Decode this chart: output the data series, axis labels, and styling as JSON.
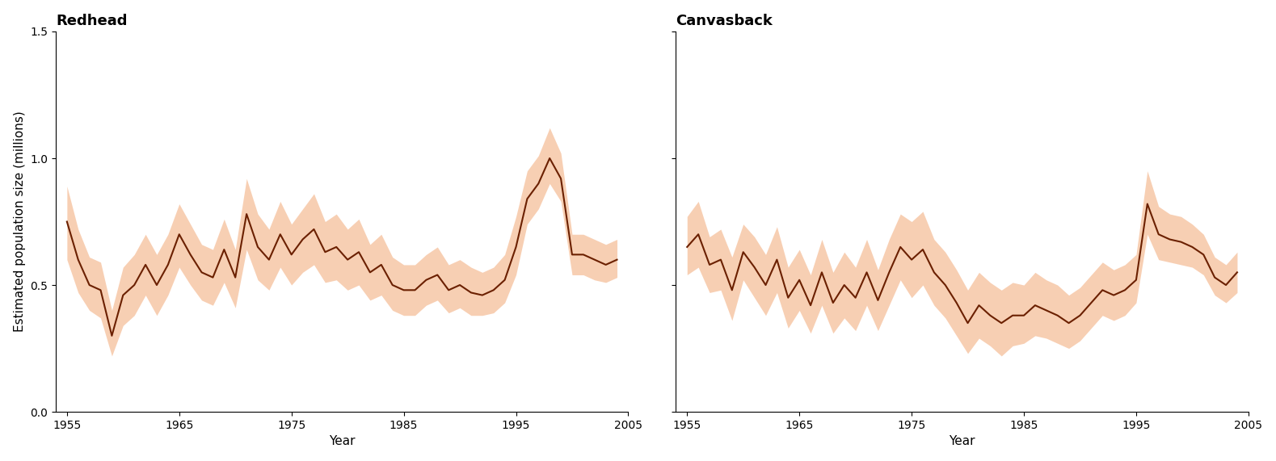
{
  "redhead": {
    "title": "Redhead",
    "years": [
      1955,
      1956,
      1957,
      1958,
      1959,
      1960,
      1961,
      1962,
      1963,
      1964,
      1965,
      1966,
      1967,
      1968,
      1969,
      1970,
      1971,
      1972,
      1973,
      1974,
      1975,
      1976,
      1977,
      1978,
      1979,
      1980,
      1981,
      1982,
      1983,
      1984,
      1985,
      1986,
      1987,
      1988,
      1989,
      1990,
      1991,
      1992,
      1993,
      1994,
      1995,
      1996,
      1997,
      1998,
      1999,
      2000,
      2001,
      2002,
      2003,
      2004
    ],
    "mean": [
      0.75,
      0.6,
      0.5,
      0.48,
      0.3,
      0.46,
      0.5,
      0.58,
      0.5,
      0.58,
      0.7,
      0.62,
      0.55,
      0.53,
      0.64,
      0.53,
      0.78,
      0.65,
      0.6,
      0.7,
      0.62,
      0.68,
      0.72,
      0.63,
      0.65,
      0.6,
      0.63,
      0.55,
      0.58,
      0.5,
      0.48,
      0.48,
      0.52,
      0.54,
      0.48,
      0.5,
      0.47,
      0.46,
      0.48,
      0.52,
      0.65,
      0.84,
      0.9,
      1.0,
      0.92,
      0.62,
      0.62,
      0.6,
      0.58,
      0.6
    ],
    "lower": [
      0.6,
      0.47,
      0.4,
      0.37,
      0.22,
      0.34,
      0.38,
      0.46,
      0.38,
      0.46,
      0.57,
      0.5,
      0.44,
      0.42,
      0.51,
      0.41,
      0.64,
      0.52,
      0.48,
      0.57,
      0.5,
      0.55,
      0.58,
      0.51,
      0.52,
      0.48,
      0.5,
      0.44,
      0.46,
      0.4,
      0.38,
      0.38,
      0.42,
      0.44,
      0.39,
      0.41,
      0.38,
      0.38,
      0.39,
      0.43,
      0.54,
      0.74,
      0.8,
      0.9,
      0.83,
      0.54,
      0.54,
      0.52,
      0.51,
      0.53
    ],
    "upper": [
      0.89,
      0.72,
      0.61,
      0.59,
      0.4,
      0.57,
      0.62,
      0.7,
      0.62,
      0.7,
      0.82,
      0.74,
      0.66,
      0.64,
      0.76,
      0.64,
      0.92,
      0.78,
      0.72,
      0.83,
      0.74,
      0.8,
      0.86,
      0.75,
      0.78,
      0.72,
      0.76,
      0.66,
      0.7,
      0.61,
      0.58,
      0.58,
      0.62,
      0.65,
      0.58,
      0.6,
      0.57,
      0.55,
      0.57,
      0.62,
      0.77,
      0.95,
      1.01,
      1.12,
      1.02,
      0.7,
      0.7,
      0.68,
      0.66,
      0.68
    ]
  },
  "canvasback": {
    "title": "Canvasback",
    "years": [
      1955,
      1956,
      1957,
      1958,
      1959,
      1960,
      1961,
      1962,
      1963,
      1964,
      1965,
      1966,
      1967,
      1968,
      1969,
      1970,
      1971,
      1972,
      1973,
      1974,
      1975,
      1976,
      1977,
      1978,
      1979,
      1980,
      1981,
      1982,
      1983,
      1984,
      1985,
      1986,
      1987,
      1988,
      1989,
      1990,
      1991,
      1992,
      1993,
      1994,
      1995,
      1996,
      1997,
      1998,
      1999,
      2000,
      2001,
      2002,
      2003,
      2004
    ],
    "mean": [
      0.65,
      0.7,
      0.58,
      0.6,
      0.48,
      0.63,
      0.57,
      0.5,
      0.6,
      0.45,
      0.52,
      0.42,
      0.55,
      0.43,
      0.5,
      0.45,
      0.55,
      0.44,
      0.55,
      0.65,
      0.6,
      0.64,
      0.55,
      0.5,
      0.43,
      0.35,
      0.42,
      0.38,
      0.35,
      0.38,
      0.38,
      0.42,
      0.4,
      0.38,
      0.35,
      0.38,
      0.43,
      0.48,
      0.46,
      0.48,
      0.52,
      0.82,
      0.7,
      0.68,
      0.67,
      0.65,
      0.62,
      0.53,
      0.5,
      0.55
    ],
    "lower": [
      0.54,
      0.57,
      0.47,
      0.48,
      0.36,
      0.52,
      0.45,
      0.38,
      0.47,
      0.33,
      0.4,
      0.31,
      0.42,
      0.31,
      0.37,
      0.32,
      0.42,
      0.32,
      0.42,
      0.52,
      0.45,
      0.5,
      0.42,
      0.37,
      0.3,
      0.23,
      0.29,
      0.26,
      0.22,
      0.26,
      0.27,
      0.3,
      0.29,
      0.27,
      0.25,
      0.28,
      0.33,
      0.38,
      0.36,
      0.38,
      0.43,
      0.7,
      0.6,
      0.59,
      0.58,
      0.57,
      0.54,
      0.46,
      0.43,
      0.47
    ],
    "upper": [
      0.77,
      0.83,
      0.69,
      0.72,
      0.61,
      0.74,
      0.69,
      0.62,
      0.73,
      0.57,
      0.64,
      0.54,
      0.68,
      0.55,
      0.63,
      0.57,
      0.68,
      0.56,
      0.68,
      0.78,
      0.75,
      0.79,
      0.68,
      0.63,
      0.56,
      0.48,
      0.55,
      0.51,
      0.48,
      0.51,
      0.5,
      0.55,
      0.52,
      0.5,
      0.46,
      0.49,
      0.54,
      0.59,
      0.56,
      0.58,
      0.62,
      0.95,
      0.81,
      0.78,
      0.77,
      0.74,
      0.7,
      0.61,
      0.58,
      0.63
    ]
  },
  "line_color": "#6B2000",
  "fill_color": "#F2A876",
  "fill_alpha": 0.55,
  "ylabel": "Estimated population size (millions)",
  "xlabel": "Year",
  "ylim": [
    0,
    1.5
  ],
  "yticks": [
    0,
    0.5,
    1.0,
    1.5
  ],
  "xlim": [
    1954,
    2005
  ],
  "xticks": [
    1955,
    1965,
    1975,
    1985,
    1995,
    2005
  ],
  "line_width": 1.5,
  "title_fontsize": 13,
  "label_fontsize": 11,
  "tick_fontsize": 10
}
